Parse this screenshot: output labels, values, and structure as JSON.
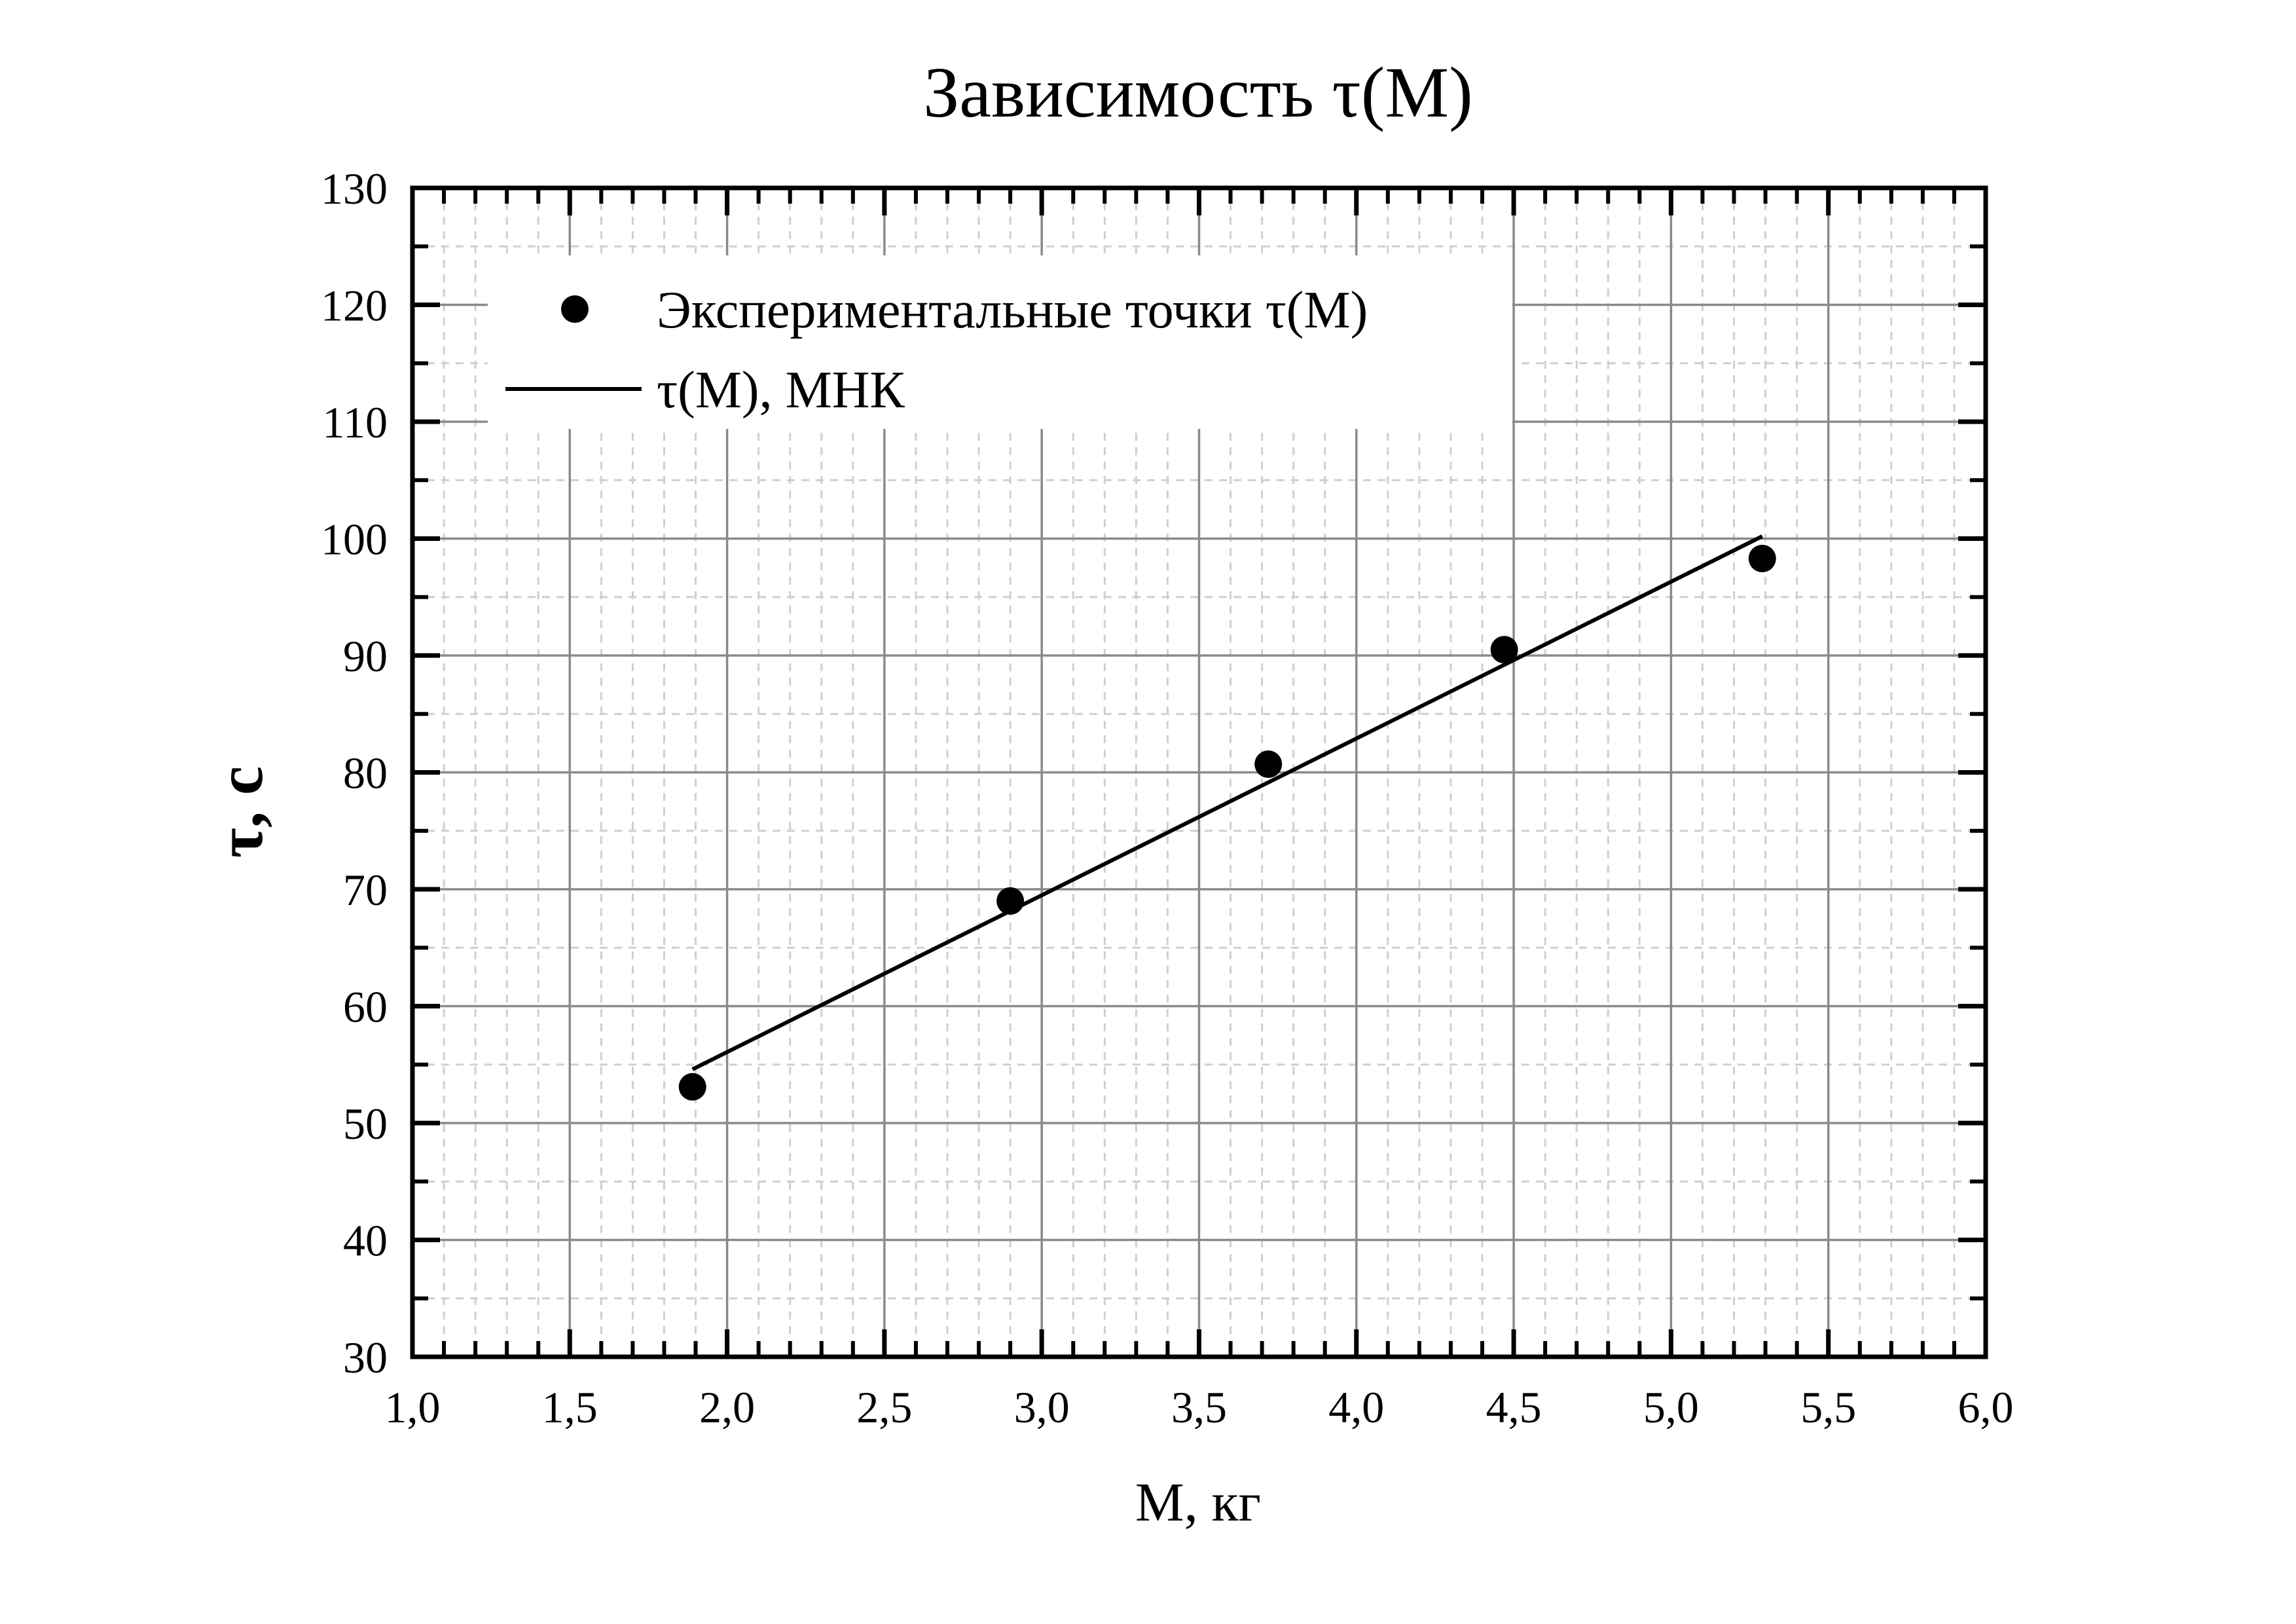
{
  "chart_data": {
    "type": "scatter",
    "title": "Зависимость τ(M)",
    "xlabel": "M, кг",
    "ylabel": "τ, c",
    "xlim": [
      1.0,
      6.0
    ],
    "ylim": [
      30,
      130
    ],
    "x_ticks": [
      1.0,
      1.5,
      2.0,
      2.5,
      3.0,
      3.5,
      4.0,
      4.5,
      5.0,
      5.5,
      6.0
    ],
    "x_tick_labels": [
      "1,0",
      "1,5",
      "2,0",
      "2,5",
      "3,0",
      "3,5",
      "4,0",
      "4,5",
      "5,0",
      "5,5",
      "6,0"
    ],
    "y_ticks": [
      30,
      40,
      50,
      60,
      70,
      80,
      90,
      100,
      110,
      120,
      130
    ],
    "y_tick_labels": [
      "30",
      "40",
      "50",
      "60",
      "70",
      "80",
      "90",
      "100",
      "110",
      "120",
      "130"
    ],
    "grid": true,
    "minor_grid": true,
    "legend_position": "top-left",
    "series": [
      {
        "name": "Экспериментальные точки τ(M)",
        "kind": "scatter",
        "marker": "circle",
        "color": "#000000",
        "x": [
          1.89,
          2.9,
          3.72,
          4.47,
          5.29
        ],
        "y": [
          53.1,
          69.0,
          80.7,
          90.5,
          98.3
        ]
      },
      {
        "name": "τ(M), МНК",
        "kind": "line",
        "color": "#000000",
        "x": [
          1.89,
          5.29
        ],
        "y": [
          54.6,
          100.2
        ]
      }
    ]
  }
}
